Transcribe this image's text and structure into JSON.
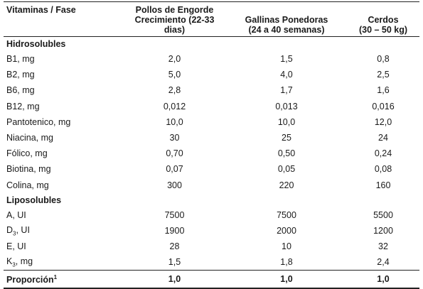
{
  "header": {
    "col0": "Vitaminas / Fase",
    "col1_line1": "Pollos de Engorde",
    "col1_line2": "Crecimiento (22-33 dias)",
    "col2_line1": "Gallinas Ponedoras",
    "col2_line2": "(24 a 40 semanas)",
    "col3_line1": "Cerdos",
    "col3_line2": "(30 – 50 kg)"
  },
  "sections": {
    "hidro": "Hidrosolubles",
    "lipo": "Liposolubles"
  },
  "rows": {
    "b1": {
      "label": "B1, mg",
      "v1": "2,0",
      "v2": "1,5",
      "v3": "0,8"
    },
    "b2": {
      "label": "B2, mg",
      "v1": "5,0",
      "v2": "4,0",
      "v3": "2,5"
    },
    "b6": {
      "label": "B6, mg",
      "v1": "2,8",
      "v2": "1,7",
      "v3": "1,6"
    },
    "b12": {
      "label": "B12, mg",
      "v1": "0,012",
      "v2": "0,013",
      "v3": "0,016"
    },
    "panto": {
      "label": "Pantotenico, mg",
      "v1": "10,0",
      "v2": "10,0",
      "v3": "12,0"
    },
    "niacina": {
      "label": "Niacina, mg",
      "v1": "30",
      "v2": "25",
      "v3": "24"
    },
    "folico": {
      "label": "Fólico, mg",
      "v1": "0,70",
      "v2": "0,50",
      "v3": "0,24"
    },
    "biotina": {
      "label": "Biotina, mg",
      "v1": "0,07",
      "v2": "0,05",
      "v3": "0,08"
    },
    "colina": {
      "label": "Colina, mg",
      "v1": "300",
      "v2": "220",
      "v3": "160"
    },
    "a": {
      "label": "A, UI",
      "v1": "7500",
      "v2": "7500",
      "v3": "5500"
    },
    "d3": {
      "label_main": "D",
      "label_sub": "3",
      "label_rest": ", UI",
      "v1": "1900",
      "v2": "2000",
      "v3": "1200"
    },
    "e": {
      "label": "E, UI",
      "v1": "28",
      "v2": "10",
      "v3": "32"
    },
    "k3": {
      "label_main": "K",
      "label_sub": "3",
      "label_rest": ", mg",
      "v1": "1,5",
      "v2": "1,8",
      "v3": "2,4"
    }
  },
  "total": {
    "label": "Proporción",
    "sup": "1",
    "v1": "1,0",
    "v2": "1,0",
    "v3": "1,0"
  }
}
